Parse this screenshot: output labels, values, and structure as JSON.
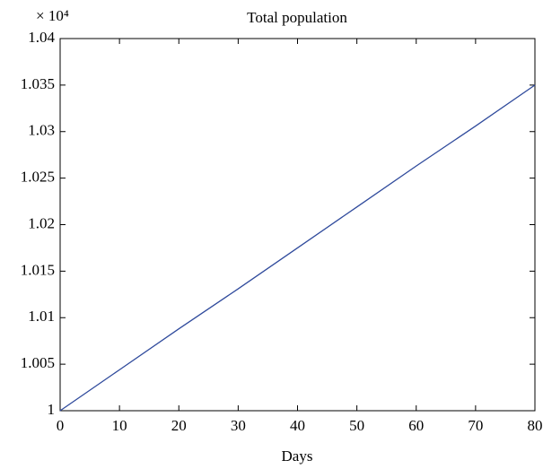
{
  "chart_data": {
    "type": "line",
    "title": "Total population",
    "x_label": "Days",
    "y_scale_label": "× 10⁴",
    "x": [
      0,
      10,
      20,
      30,
      40,
      50,
      60,
      70,
      80
    ],
    "series": [
      {
        "name": "Total population",
        "color": "#2f4a9c",
        "values": [
          1,
          1.0044,
          1.0088,
          1.0131,
          1.0175,
          1.0219,
          1.0263,
          1.0306,
          1.035
        ]
      }
    ],
    "xlim": [
      0,
      80
    ],
    "xticks": [
      0,
      10,
      20,
      30,
      40,
      50,
      60,
      70,
      80
    ],
    "ylim": [
      1,
      1.04
    ],
    "yticks": [
      1,
      1.005,
      1.01,
      1.015,
      1.02,
      1.025,
      1.03,
      1.035,
      1.04
    ]
  }
}
